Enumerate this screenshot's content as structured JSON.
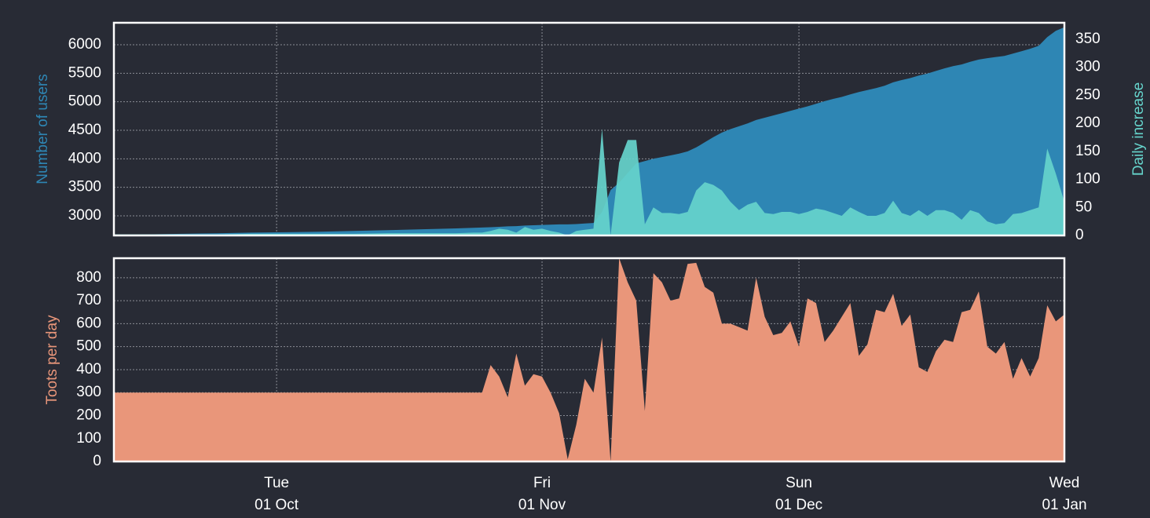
{
  "chart_data": [
    {
      "type": "area",
      "ylabel": "Number of users",
      "y2label": "Daily increase",
      "x": [
        "09-12",
        "09-16",
        "09-20",
        "09-24",
        "09-28",
        "10-02",
        "10-06",
        "10-10",
        "10-14",
        "10-18",
        "10-22",
        "10-24",
        "10-25",
        "10-26",
        "10-27",
        "10-28",
        "10-29",
        "10-30",
        "10-31",
        "11-01",
        "11-02",
        "11-03",
        "11-04",
        "11-05",
        "11-06",
        "11-07",
        "11-08",
        "11-09",
        "11-10",
        "11-11",
        "11-12",
        "11-13",
        "11-14",
        "11-15",
        "11-16",
        "11-17",
        "11-18",
        "11-19",
        "11-20",
        "11-21",
        "11-22",
        "11-23",
        "11-24",
        "11-25",
        "11-26",
        "11-27",
        "11-28",
        "11-29",
        "11-30",
        "12-01",
        "12-02",
        "12-03",
        "12-04",
        "12-05",
        "12-06",
        "12-07",
        "12-08",
        "12-09",
        "12-10",
        "12-11",
        "12-12",
        "12-13",
        "12-14",
        "12-15",
        "12-16",
        "12-17",
        "12-18",
        "12-19",
        "12-20",
        "12-21",
        "12-22",
        "12-23",
        "12-24",
        "12-25",
        "12-26",
        "12-27",
        "12-28",
        "12-29",
        "12-30",
        "12-31",
        "01-01"
      ],
      "xlim": [
        "09-12",
        "01-01"
      ],
      "ylim": [
        2656,
        6385
      ],
      "yticks": [
        3000,
        3500,
        4000,
        4500,
        5000,
        5500,
        6000
      ],
      "y2lim": [
        0,
        379
      ],
      "y2ticks": [
        0,
        50,
        100,
        150,
        200,
        250,
        300,
        350
      ],
      "grid": true,
      "series": [
        {
          "color": "#2e86b4",
          "values": [
            2660,
            2675,
            2685,
            2695,
            2705,
            2712,
            2722,
            2735,
            2748,
            2765,
            2780,
            2790,
            2795,
            2800,
            2808,
            2815,
            2820,
            2830,
            2835,
            2840,
            2845,
            2850,
            2850,
            2855,
            2865,
            2875,
            3065,
            3450,
            3580,
            3750,
            3920,
            3960,
            4000,
            4030,
            4060,
            4090,
            4130,
            4200,
            4290,
            4380,
            4460,
            4520,
            4570,
            4620,
            4680,
            4720,
            4760,
            4800,
            4840,
            4880,
            4920,
            4965,
            5010,
            5050,
            5085,
            5130,
            5170,
            5205,
            5240,
            5280,
            5340,
            5380,
            5415,
            5460,
            5495,
            5540,
            5585,
            5625,
            5655,
            5700,
            5740,
            5765,
            5785,
            5805,
            5845,
            5885,
            5930,
            5980,
            6135,
            6245,
            6305
          ]
        },
        {
          "color": "#66d4cc",
          "axis": "y2",
          "values": [
            2,
            2,
            2,
            2,
            3,
            3,
            3,
            3,
            4,
            4,
            4,
            5,
            5,
            8,
            12,
            10,
            5,
            15,
            10,
            12,
            8,
            5,
            0,
            8,
            10,
            12,
            190,
            0,
            130,
            170,
            170,
            20,
            50,
            40,
            40,
            38,
            42,
            80,
            95,
            90,
            80,
            60,
            45,
            55,
            60,
            40,
            38,
            42,
            42,
            38,
            42,
            48,
            45,
            40,
            35,
            50,
            42,
            35,
            35,
            40,
            62,
            40,
            35,
            45,
            35,
            45,
            45,
            40,
            28,
            45,
            40,
            25,
            20,
            22,
            38,
            40,
            45,
            50,
            155,
            110,
            60
          ]
        }
      ]
    },
    {
      "type": "area",
      "ylabel": "Toots per day",
      "x": [
        "09-12",
        "09-16",
        "09-20",
        "09-24",
        "09-28",
        "10-02",
        "10-06",
        "10-10",
        "10-14",
        "10-18",
        "10-22",
        "10-24",
        "10-25",
        "10-26",
        "10-27",
        "10-28",
        "10-29",
        "10-30",
        "10-31",
        "11-01",
        "11-02",
        "11-03",
        "11-04",
        "11-05",
        "11-06",
        "11-07",
        "11-08",
        "11-09",
        "11-10",
        "11-11",
        "11-12",
        "11-13",
        "11-14",
        "11-15",
        "11-16",
        "11-17",
        "11-18",
        "11-19",
        "11-20",
        "11-21",
        "11-22",
        "11-23",
        "11-24",
        "11-25",
        "11-26",
        "11-27",
        "11-28",
        "11-29",
        "11-30",
        "12-01",
        "12-02",
        "12-03",
        "12-04",
        "12-05",
        "12-06",
        "12-07",
        "12-08",
        "12-09",
        "12-10",
        "12-11",
        "12-12",
        "12-13",
        "12-14",
        "12-15",
        "12-16",
        "12-17",
        "12-18",
        "12-19",
        "12-20",
        "12-21",
        "12-22",
        "12-23",
        "12-24",
        "12-25",
        "12-26",
        "12-27",
        "12-28",
        "12-29",
        "12-30",
        "12-31",
        "01-01"
      ],
      "xlim": [
        "09-12",
        "01-01"
      ],
      "xticks": [
        {
          "value": "10-01",
          "label": "Tue\n01 Oct"
        },
        {
          "value": "11-01",
          "label": "Fri\n01 Nov"
        },
        {
          "value": "12-01",
          "label": "Sun\n01 Dec"
        },
        {
          "value": "01-01",
          "label": "Wed\n01 Jan"
        }
      ],
      "ylim": [
        0,
        885
      ],
      "yticks": [
        0,
        100,
        200,
        300,
        400,
        500,
        600,
        700,
        800
      ],
      "grid": true,
      "series": [
        {
          "color": "#e9967a",
          "values": [
            300,
            300,
            300,
            300,
            300,
            300,
            300,
            300,
            300,
            300,
            300,
            300,
            300,
            420,
            370,
            280,
            470,
            330,
            380,
            370,
            300,
            210,
            10,
            160,
            360,
            300,
            540,
            0,
            885,
            780,
            700,
            220,
            820,
            780,
            700,
            710,
            860,
            865,
            760,
            735,
            600,
            600,
            585,
            570,
            800,
            630,
            550,
            560,
            610,
            500,
            710,
            690,
            520,
            570,
            630,
            690,
            460,
            510,
            660,
            650,
            730,
            590,
            640,
            410,
            390,
            480,
            530,
            520,
            650,
            660,
            740,
            500,
            470,
            520,
            360,
            450,
            370,
            450,
            680,
            610,
            640
          ]
        }
      ]
    }
  ]
}
